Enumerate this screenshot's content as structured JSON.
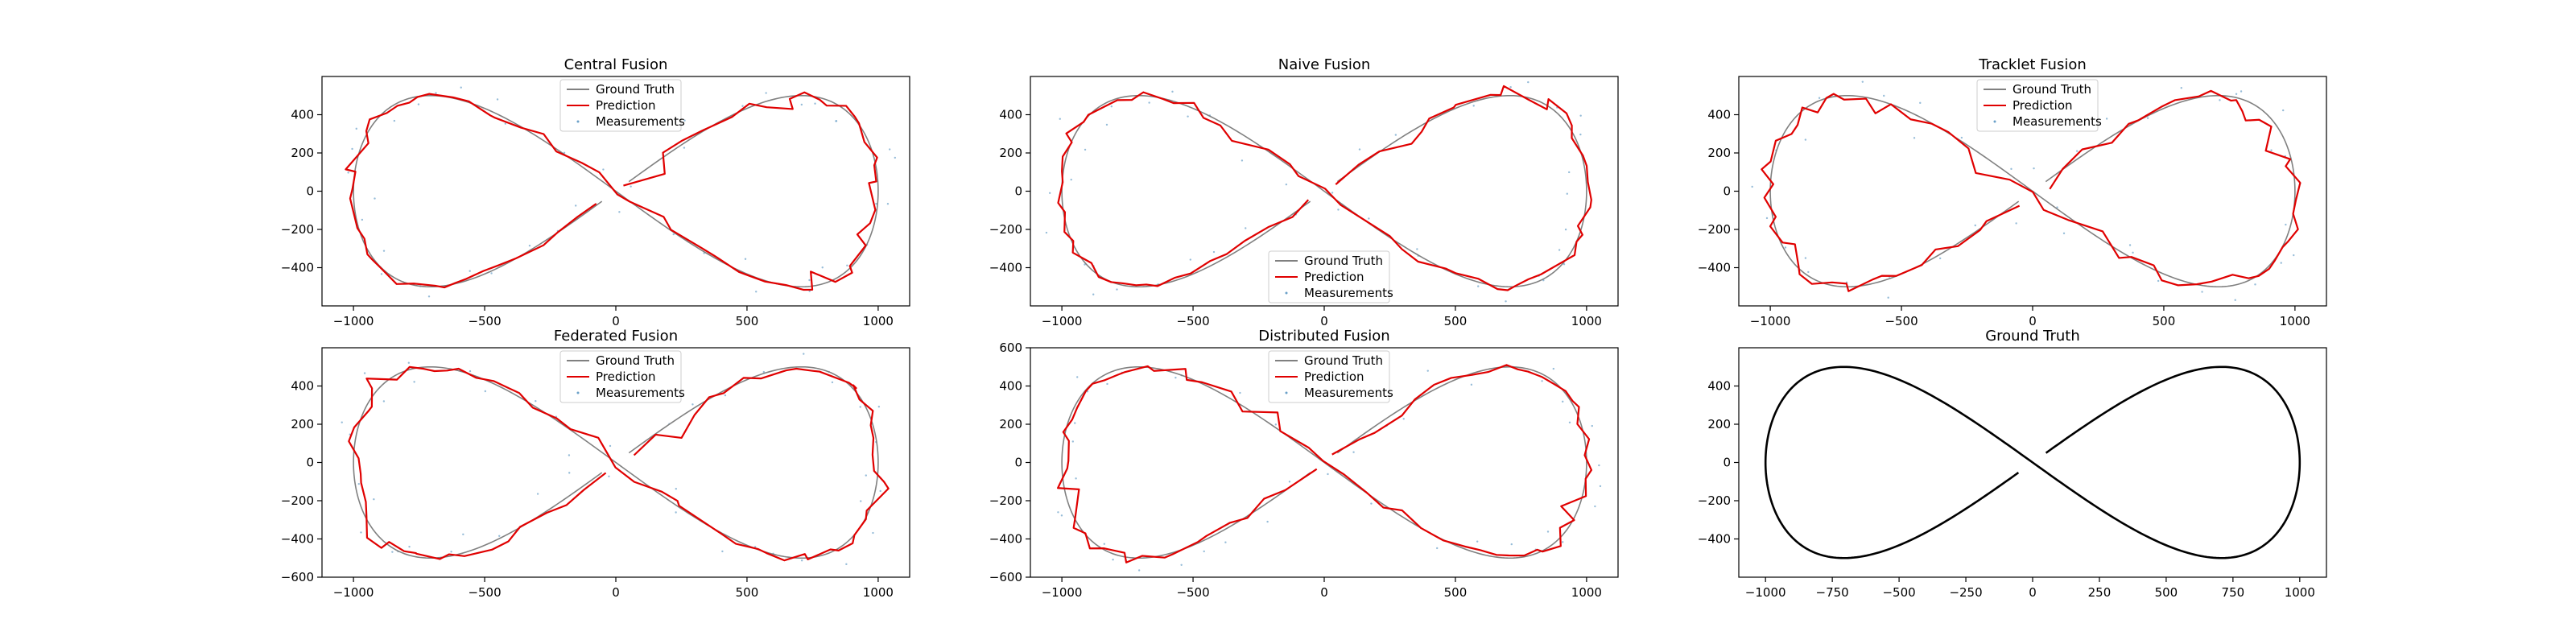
{
  "chart_data": [
    {
      "type": "line",
      "title": "Central Fusion",
      "xlim": [
        -1120,
        1120
      ],
      "ylim": [
        -600,
        600
      ],
      "xticks": [
        -1000,
        -500,
        0,
        500,
        1000
      ],
      "yticks": [
        -400,
        -200,
        0,
        200,
        400
      ],
      "xtick_labels": [
        "−1000",
        "−500",
        "0",
        "500",
        "1000"
      ],
      "ytick_labels": [
        "−400",
        "−200",
        "0",
        "200",
        "400"
      ],
      "legend_position": "top-center",
      "noise_seed": 1,
      "prediction_noise": 55
    },
    {
      "type": "line",
      "title": "Naive Fusion",
      "xlim": [
        -1120,
        1120
      ],
      "ylim": [
        -600,
        600
      ],
      "xticks": [
        -1000,
        -500,
        0,
        500,
        1000
      ],
      "yticks": [
        -400,
        -200,
        0,
        200,
        400
      ],
      "xtick_labels": [
        "−1000",
        "−500",
        "0",
        "500",
        "1000"
      ],
      "ytick_labels": [
        "−400",
        "−200",
        "0",
        "200",
        "400"
      ],
      "legend_position": "bottom-center",
      "noise_seed": 2,
      "prediction_noise": 45
    },
    {
      "type": "line",
      "title": "Tracklet Fusion",
      "xlim": [
        -1120,
        1120
      ],
      "ylim": [
        -600,
        600
      ],
      "xticks": [
        -1000,
        -500,
        0,
        500,
        1000
      ],
      "yticks": [
        -400,
        -200,
        0,
        200,
        400
      ],
      "xtick_labels": [
        "−1000",
        "−500",
        "0",
        "500",
        "1000"
      ],
      "ytick_labels": [
        "−400",
        "−200",
        "0",
        "200",
        "400"
      ],
      "legend_position": "top-center",
      "noise_seed": 3,
      "prediction_noise": 55
    },
    {
      "type": "line",
      "title": "Federated Fusion",
      "xlim": [
        -1120,
        1120
      ],
      "ylim": [
        -600,
        600
      ],
      "xticks": [
        -1000,
        -500,
        0,
        500,
        1000
      ],
      "yticks": [
        -600,
        -400,
        -200,
        0,
        200,
        400
      ],
      "xtick_labels": [
        "−1000",
        "−500",
        "0",
        "500",
        "1000"
      ],
      "ytick_labels": [
        "−600",
        "−400",
        "−200",
        "0",
        "200",
        "400"
      ],
      "legend_position": "top-center",
      "noise_seed": 4,
      "prediction_noise": 55
    },
    {
      "type": "line",
      "title": "Distributed Fusion",
      "xlim": [
        -1120,
        1120
      ],
      "ylim": [
        -600,
        600
      ],
      "xticks": [
        -1000,
        -500,
        0,
        500,
        1000
      ],
      "yticks": [
        -600,
        -400,
        -200,
        0,
        200,
        400,
        600
      ],
      "xtick_labels": [
        "−1000",
        "−500",
        "0",
        "500",
        "1000"
      ],
      "ytick_labels": [
        "−600",
        "−400",
        "−200",
        "0",
        "200",
        "400",
        "600"
      ],
      "legend_position": "top-center",
      "noise_seed": 5,
      "prediction_noise": 50
    },
    {
      "type": "line",
      "title": "Ground Truth",
      "xlim": [
        -1100,
        1100
      ],
      "ylim": [
        -600,
        600
      ],
      "xticks": [
        -1000,
        -750,
        -500,
        -250,
        0,
        250,
        500,
        750,
        1000
      ],
      "yticks": [
        -400,
        -200,
        0,
        200,
        400
      ],
      "xtick_labels": [
        "−1000",
        "−750",
        "−500",
        "−250",
        "0",
        "250",
        "500",
        "750",
        "1000"
      ],
      "ytick_labels": [
        "−400",
        "−200",
        "0",
        "200",
        "400"
      ],
      "legend_position": "none",
      "noise_seed": 0,
      "prediction_noise": 0
    }
  ],
  "ground_truth_curve": {
    "shape": "lemniscate of Gerono (x = A·sin t, y = B·sin t·cos t)",
    "x_amplitude": 1000,
    "y_amplitude": 1000,
    "t_start": 0.05,
    "t_end": 6.23
  },
  "legend": {
    "ground_truth": "Ground Truth",
    "prediction": "Prediction",
    "measurements": "Measurements"
  },
  "colors": {
    "ground_truth": "#808080",
    "ground_truth_panel": "#000000",
    "prediction": "#e00000",
    "measurements": "#6aa0c8"
  }
}
